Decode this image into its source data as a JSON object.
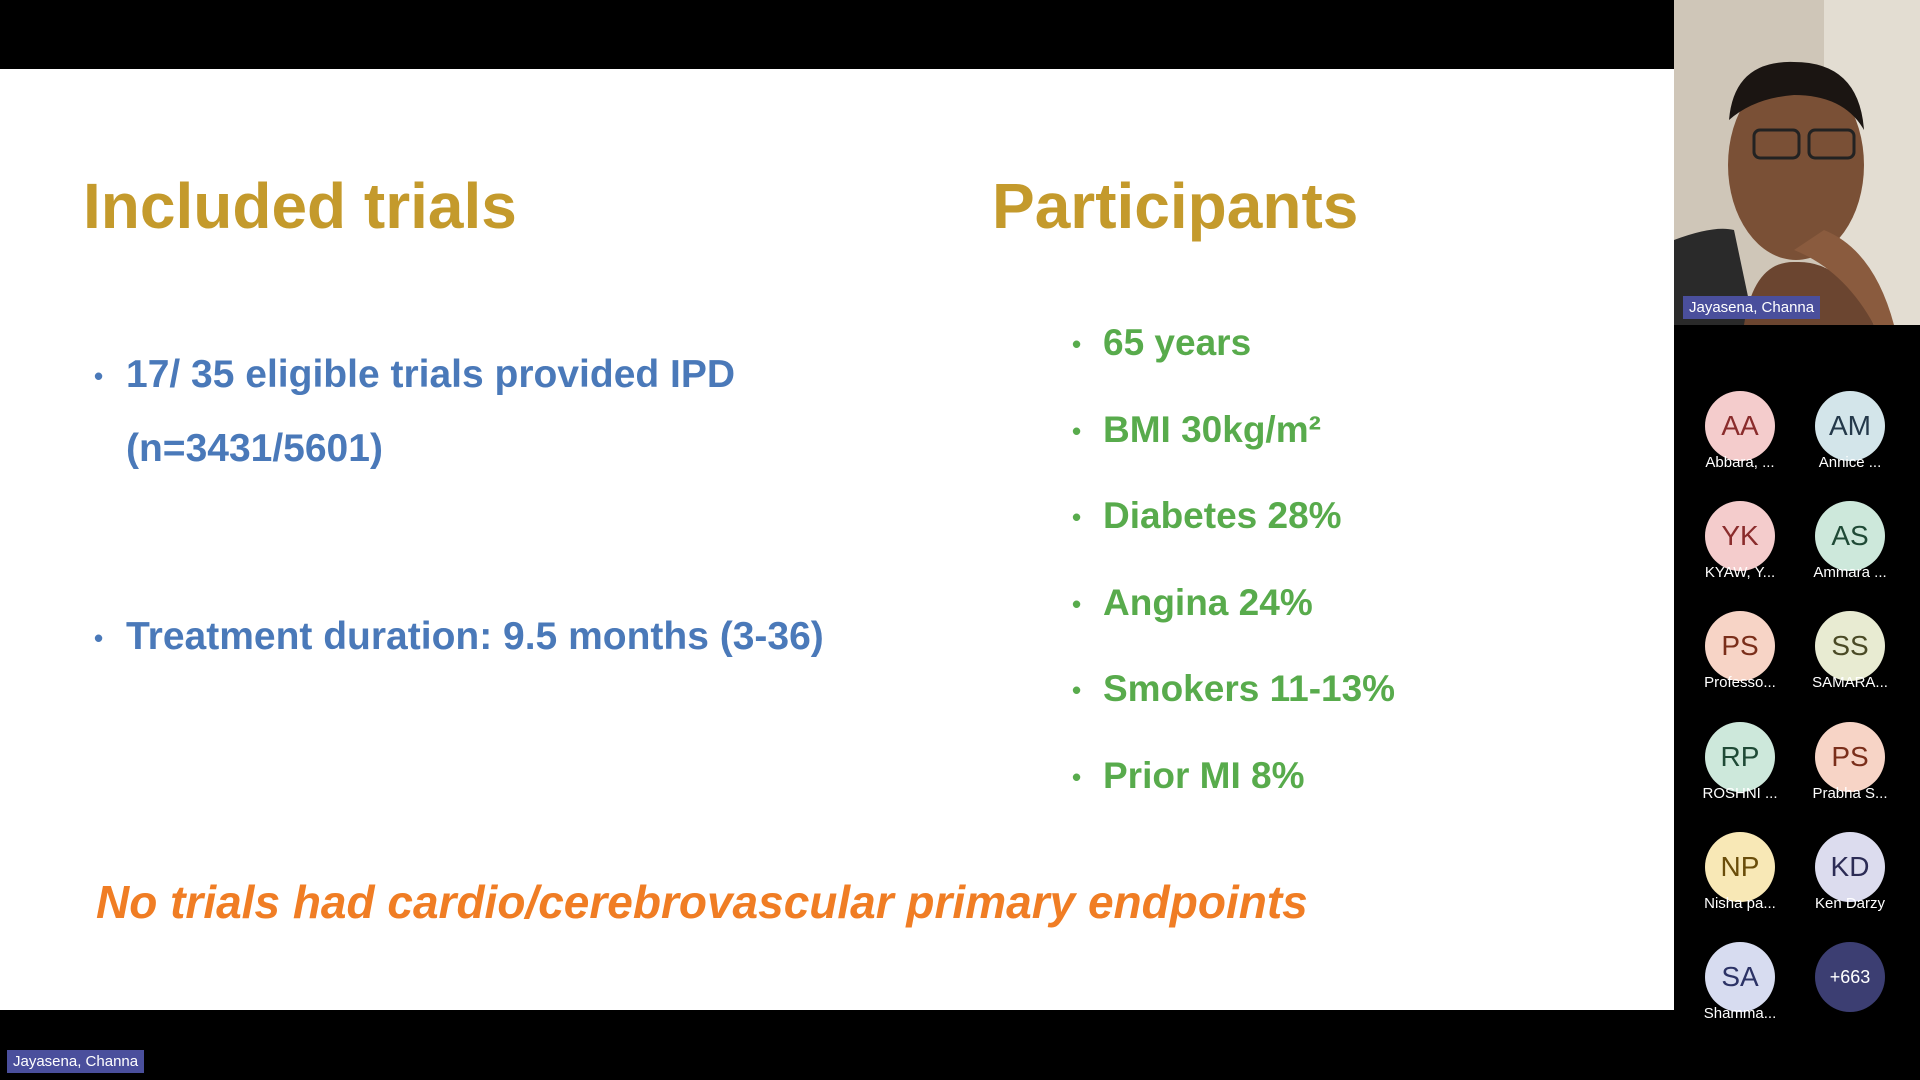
{
  "slide": {
    "left_title": "Included trials",
    "right_title": "Participants",
    "left_bullets": [
      [
        "17/ 35 eligible trials provided IPD",
        "(n=3431/5601)"
      ],
      [
        "Treatment duration: 9.5 months (3-36)"
      ]
    ],
    "right_bullets": [
      "65 years",
      "BMI 30kg/m²",
      "Diabetes 28%",
      "Angina 24%",
      "Smokers 11-13%",
      "Prior MI 8%"
    ],
    "note": "No trials had cardio/cerebrovascular primary endpoints"
  },
  "presenter_label": "Jayasena, Channa",
  "video": {
    "label": "Jayasena, Channa"
  },
  "participants": [
    {
      "initials": "AA",
      "name": "Abbara, ...",
      "color": "#f4cccc",
      "text_color": "#8a2c2c"
    },
    {
      "initials": "AM",
      "name": "Annice ...",
      "color": "#d3e5ea",
      "text_color": "#24394a"
    },
    {
      "initials": "YK",
      "name": "KYAW, Y...",
      "color": "#f4cccc",
      "text_color": "#8a2c2c"
    },
    {
      "initials": "AS",
      "name": "Ammara ...",
      "color": "#cde8db",
      "text_color": "#1f4a36"
    },
    {
      "initials": "PS",
      "name": "Professo...",
      "color": "#f7d4c6",
      "text_color": "#7a2e1a"
    },
    {
      "initials": "SS",
      "name": "SAMARA...",
      "color": "#e8ebd2",
      "text_color": "#4a4a26"
    },
    {
      "initials": "RP",
      "name": "ROSHNI ...",
      "color": "#cde8db",
      "text_color": "#1f4a36"
    },
    {
      "initials": "PS",
      "name": "Prabha S...",
      "color": "#f7d4c6",
      "text_color": "#7a2e1a"
    },
    {
      "initials": "NP",
      "name": "Nisha pa...",
      "color": "#f8e8b6",
      "text_color": "#6a4d0a"
    },
    {
      "initials": "KD",
      "name": "Ken Darzy",
      "color": "#dcdcee",
      "text_color": "#2c2c55"
    },
    {
      "initials": "SA",
      "name": "Shamma...",
      "color": "#d7dcf0",
      "text_color": "#2c3366"
    }
  ],
  "more_count": "+663"
}
